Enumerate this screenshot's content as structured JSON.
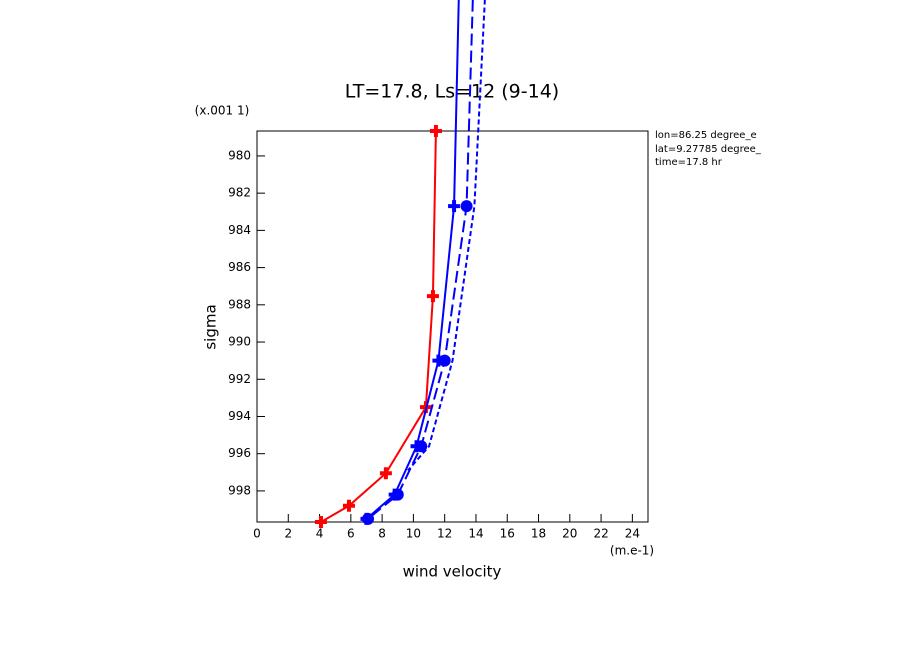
{
  "chart_data": {
    "type": "profile",
    "title": "LT=17.8, Ls=12 (9-14)",
    "x_label": "wind velocity",
    "x_units": "(m.e-1)",
    "y_label": "sigma",
    "y_units": "(x.001 1)",
    "notes": [
      "lon=86.25 degree_e",
      "lat=9.27785 degree_",
      "time=17.8 hr"
    ],
    "xlim": [
      0,
      25
    ],
    "xticks": [
      0,
      2,
      4,
      6,
      8,
      10,
      12,
      14,
      16,
      18,
      20,
      22,
      24
    ],
    "ylim": [
      978.66,
      999.67
    ],
    "yticks": [
      980,
      982,
      984,
      986,
      988,
      990,
      992,
      994,
      996,
      998
    ],
    "y_inverted": true,
    "series": [
      {
        "color": "#ff0000",
        "dash": "none",
        "marker": "plus",
        "x": [
          11.44,
          11.25,
          10.8,
          8.24,
          5.88,
          4.09
        ],
        "y": [
          978.66,
          987.53,
          993.5,
          997.05,
          998.8,
          999.67
        ]
      },
      {
        "color": "#0000ff",
        "dash": "none",
        "marker": "plus",
        "x": [
          12.9,
          12.6,
          11.6,
          10.2,
          8.8,
          7.0
        ],
        "y": [
          971.6,
          982.7,
          991.0,
          995.6,
          998.2,
          999.5
        ]
      },
      {
        "color": "#0000ff",
        "dash": "12,5",
        "marker": "circle",
        "x": [
          13.8,
          13.4,
          12.0,
          10.5,
          9.0,
          7.1
        ],
        "y": [
          971.6,
          982.7,
          991.0,
          995.6,
          998.2,
          999.5
        ]
      },
      {
        "color": "#0000ff",
        "dash": "5,3",
        "marker": "none",
        "x": [
          14.57,
          13.9,
          12.5,
          11.0,
          9.65
        ],
        "y": [
          971.6,
          982.7,
          991.0,
          995.6,
          996.9
        ]
      }
    ]
  }
}
